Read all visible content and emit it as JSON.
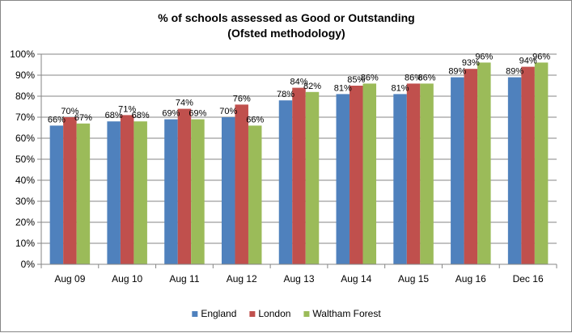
{
  "chart_data": {
    "type": "bar",
    "title": "% of schools assessed as Good or Outstanding",
    "subtitle": "(Ofsted methodology)",
    "xlabel": "",
    "ylabel": "",
    "categories": [
      "Aug 09",
      "Aug 10",
      "Aug 11",
      "Aug 12",
      "Aug 13",
      "Aug 14",
      "Aug 15",
      "Aug 16",
      "Dec 16"
    ],
    "series": [
      {
        "name": "England",
        "color": "#4F81BD",
        "values": [
          66,
          68,
          69,
          70,
          78,
          81,
          81,
          89,
          89
        ],
        "labels": [
          "66%",
          "68%",
          "69%",
          "70%",
          "78%",
          "81%",
          "81%",
          "89%",
          "89%"
        ]
      },
      {
        "name": "London",
        "color": "#C0504D",
        "values": [
          70,
          71,
          74,
          76,
          84,
          85,
          86,
          93,
          94
        ],
        "labels": [
          "70%",
          "71%",
          "74%",
          "76%",
          "84%",
          "85%",
          "86%",
          "93%",
          "94%"
        ]
      },
      {
        "name": "Waltham Forest",
        "color": "#9BBB59",
        "values": [
          67,
          68,
          69,
          66,
          82,
          86,
          86,
          96,
          96
        ],
        "labels": [
          "67%",
          "68%",
          "69%",
          "66%",
          "82%",
          "86%",
          "86%",
          "96%",
          "96%"
        ]
      }
    ],
    "ylim": [
      0,
      100
    ],
    "yticks": [
      "0%",
      "10%",
      "20%",
      "30%",
      "40%",
      "50%",
      "60%",
      "70%",
      "80%",
      "90%",
      "100%"
    ],
    "grid": true,
    "legend": "bottom"
  }
}
